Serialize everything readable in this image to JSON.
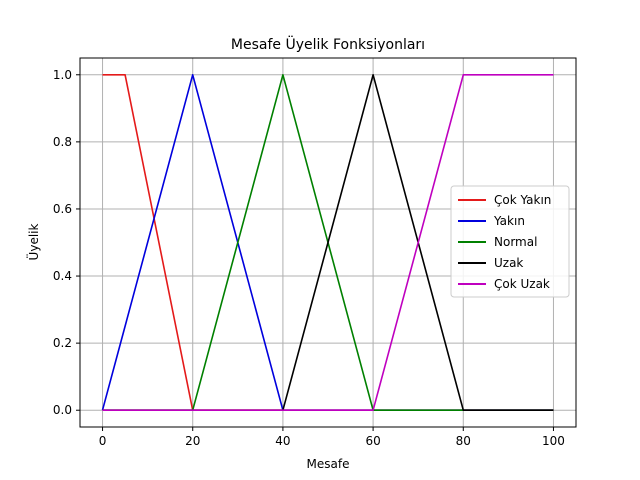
{
  "chart_data": {
    "type": "line",
    "title": "Mesafe Üyelik Fonksiyonları",
    "xlabel": "Mesafe",
    "ylabel": "Üyelik",
    "xlim": [
      -5,
      105
    ],
    "ylim": [
      -0.05,
      1.05
    ],
    "xticks": [
      0,
      20,
      40,
      60,
      80,
      100
    ],
    "yticks": [
      0.0,
      0.2,
      0.4,
      0.6,
      0.8,
      1.0
    ],
    "xtick_labels": [
      "0",
      "20",
      "40",
      "60",
      "80",
      "100"
    ],
    "ytick_labels": [
      "0.0",
      "0.2",
      "0.4",
      "0.6",
      "0.8",
      "1.0"
    ],
    "grid": true,
    "legend_position": "center-right",
    "series": [
      {
        "name": "Çok Yakın",
        "color": "#e41a1a",
        "x": [
          0,
          5,
          20,
          100
        ],
        "y": [
          1,
          1,
          0,
          0
        ]
      },
      {
        "name": "Yakın",
        "color": "#0000dd",
        "x": [
          0,
          20,
          40,
          100
        ],
        "y": [
          0,
          1,
          0,
          0
        ]
      },
      {
        "name": "Normal",
        "color": "#008000",
        "x": [
          0,
          20,
          40,
          60,
          100
        ],
        "y": [
          0,
          0,
          1,
          0,
          0
        ]
      },
      {
        "name": "Uzak",
        "color": "#000000",
        "x": [
          0,
          40,
          60,
          80,
          100
        ],
        "y": [
          0,
          0,
          1,
          0,
          0
        ]
      },
      {
        "name": "Çok Uzak",
        "color": "#bf00bf",
        "x": [
          0,
          60,
          80,
          100
        ],
        "y": [
          0,
          0,
          1,
          1
        ]
      }
    ]
  }
}
